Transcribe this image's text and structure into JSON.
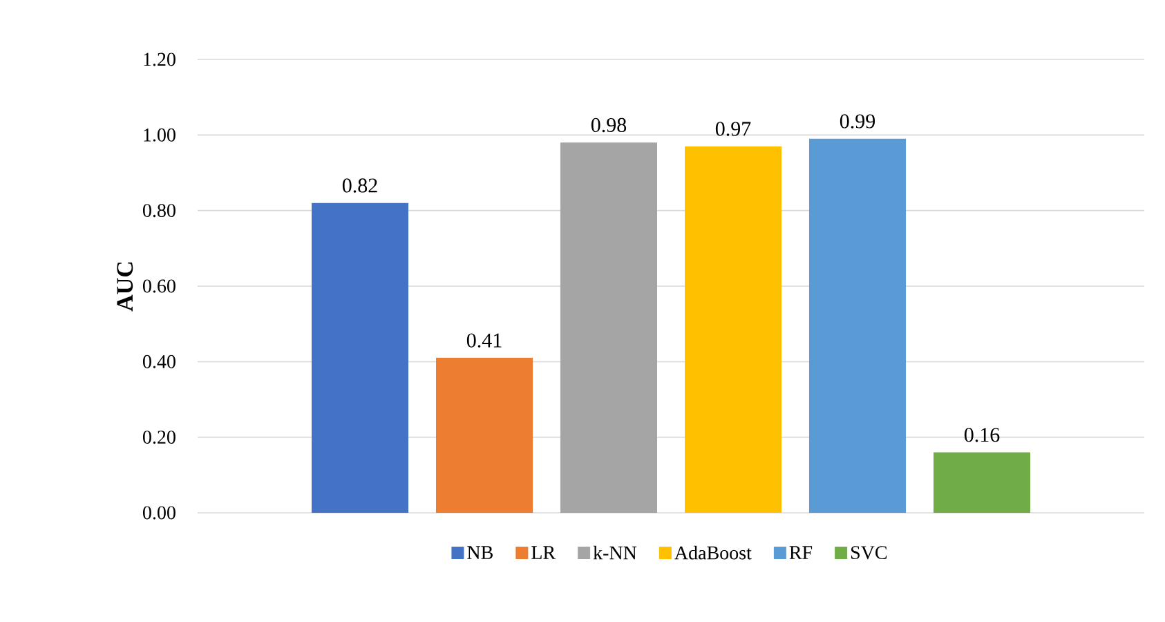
{
  "chart_data": {
    "type": "bar",
    "ylabel": "AUC",
    "categories": [
      null
    ],
    "series": [
      {
        "name": "NB",
        "color": "#4472c4",
        "values": [
          0.82
        ]
      },
      {
        "name": "LR",
        "color": "#ed7d31",
        "values": [
          0.41
        ]
      },
      {
        "name": "k-NN",
        "color": "#a5a5a5",
        "values": [
          0.98
        ]
      },
      {
        "name": "AdaBoost",
        "color": "#ffc000",
        "values": [
          0.97
        ]
      },
      {
        "name": "RF",
        "color": "#5b9bd5",
        "values": [
          0.99
        ]
      },
      {
        "name": "SVC",
        "color": "#70ad47",
        "values": [
          0.16
        ]
      }
    ],
    "ylim": [
      0,
      1.2
    ],
    "yticks": [
      {
        "value": 0,
        "label": "0.00"
      },
      {
        "value": 0.2,
        "label": "0.20"
      },
      {
        "value": 0.4,
        "label": "0.40"
      },
      {
        "value": 0.6,
        "label": "0.60"
      },
      {
        "value": 0.8,
        "label": "0.80"
      },
      {
        "value": 1.0,
        "label": "1.00"
      },
      {
        "value": 1.2,
        "label": "1.20"
      }
    ],
    "grid": "y",
    "legend": "bottom",
    "data_labels": true
  }
}
